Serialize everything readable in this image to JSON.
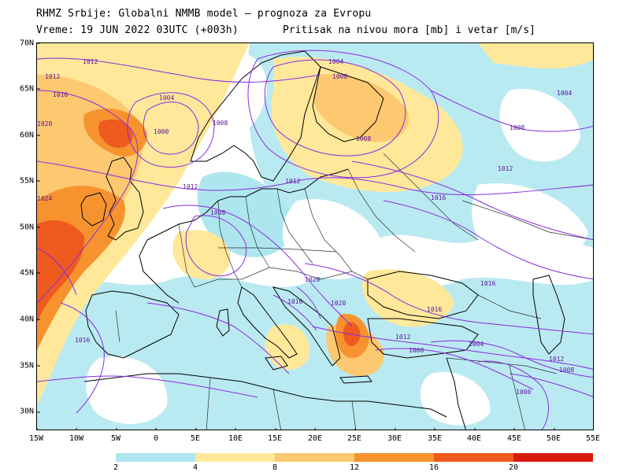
{
  "header": {
    "title": "RHMZ Srbije: Globalni NMMB model — prognoza za Evropu",
    "valid_time": "Vreme: 19 JUN 2022 03UTC (+003h)",
    "field_description": "Pritisak na nivou mora [mb] i vetar [m/s]"
  },
  "map": {
    "lat_labels": [
      "70N",
      "65N",
      "60N",
      "55N",
      "50N",
      "45N",
      "40N",
      "35N",
      "30N"
    ],
    "lon_labels": [
      "15W",
      "10W",
      "5W",
      "0",
      "5E",
      "10E",
      "15E",
      "20E",
      "25E",
      "30E",
      "35E",
      "40E",
      "45E",
      "50E",
      "55E"
    ],
    "isobar_labels": [
      "1012",
      "1016",
      "1004",
      "1000",
      "1008",
      "1008",
      "1004",
      "1004",
      "1008",
      "1008",
      "1012",
      "1012",
      "1012",
      "1008",
      "1016",
      "1016",
      "1020",
      "1016",
      "1020",
      "1016",
      "1016",
      "1012",
      "1008",
      "1004",
      "1012",
      "1008",
      "1000",
      "1012",
      "1020",
      "1024"
    ],
    "colors": {
      "isobar": "#8a2be2",
      "coast": "#000000",
      "border": "#000000"
    }
  },
  "legend": {
    "ticks": [
      "2",
      "4",
      "8",
      "12",
      "16",
      "20"
    ],
    "colors": [
      "#aee6ef",
      "#ffe89a",
      "#fcc870",
      "#f7932f",
      "#ef5a1e",
      "#d81a0e",
      "#b40c05"
    ]
  }
}
